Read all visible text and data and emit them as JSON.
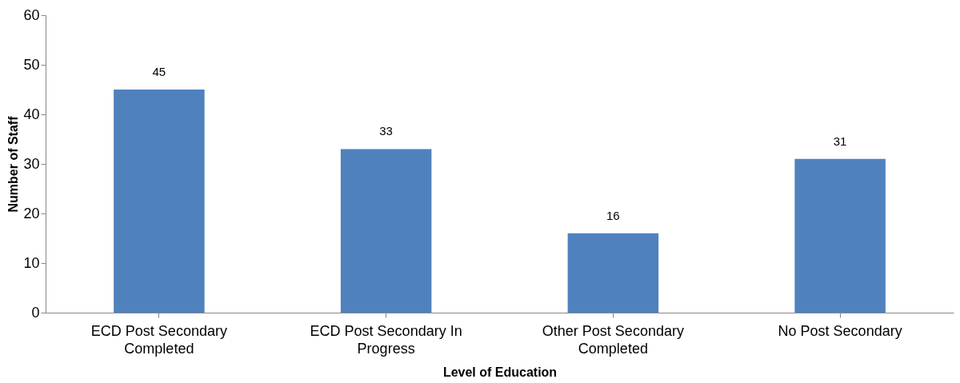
{
  "chart_data": {
    "type": "bar",
    "xlabel": "Level of Education",
    "ylabel": "Number of Staff",
    "categories": [
      "ECD Post Secondary Completed",
      "ECD Post Secondary In Progress",
      "Other Post Secondary Completed",
      "No Post Secondary"
    ],
    "values": [
      45,
      33,
      16,
      31
    ],
    "color": "#4f81bd",
    "ylim": [
      0,
      60
    ],
    "yticks": [
      0,
      10,
      20,
      30,
      40,
      50,
      60
    ],
    "grid": false,
    "data_labels": true
  }
}
